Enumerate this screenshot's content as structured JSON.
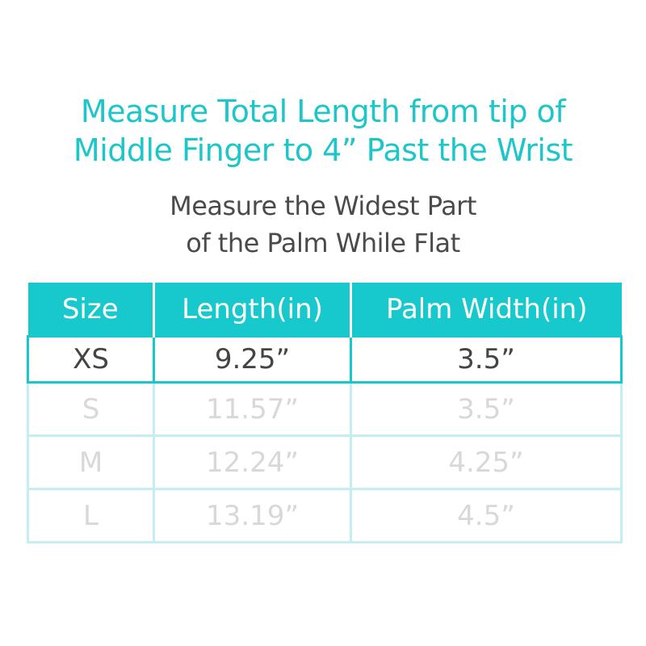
{
  "title": {
    "line1": "Measure Total Length from tip of",
    "line2": "Middle Finger to 4” Past the Wrist"
  },
  "subtitle": {
    "line1": "Measure the Widest Part",
    "line2": "of the Palm While Flat"
  },
  "table": {
    "headers": [
      "Size",
      "Length(in)",
      "Palm Width(in)"
    ],
    "rows": [
      [
        "XS",
        "9.25”",
        "3.5”"
      ],
      [
        "S",
        "11.57”",
        "3.5”"
      ],
      [
        "M",
        "12.24”",
        "4.25”"
      ],
      [
        "L",
        "13.19”",
        "4.5”"
      ]
    ],
    "highlighted_row": "XS"
  },
  "colors": {
    "accent": "#17c9cc",
    "text": "#444444",
    "faded": "#d8d8d8"
  }
}
